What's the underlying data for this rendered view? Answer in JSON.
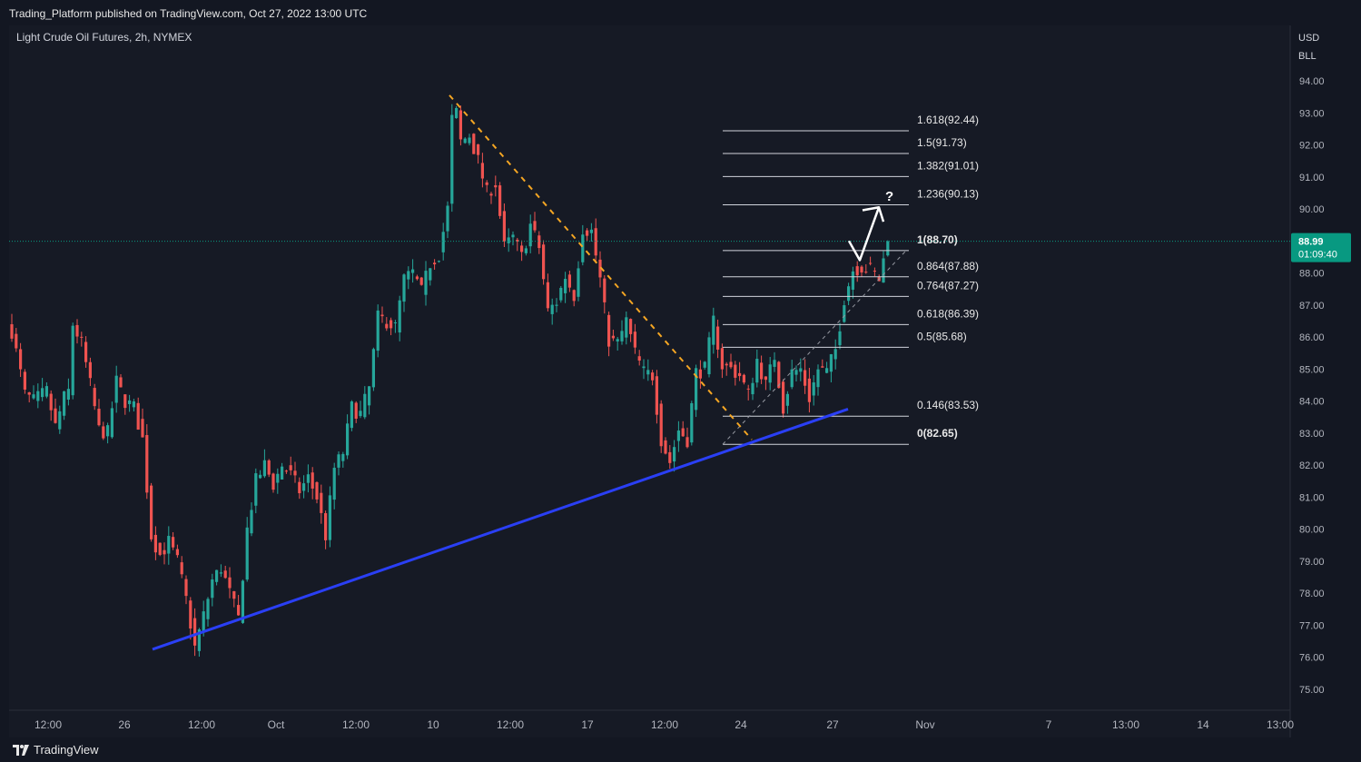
{
  "header": {
    "publisher": "Trading_Platform published on TradingView.com, Oct 27, 2022 13:00 UTC"
  },
  "footer": {
    "brand": "TradingView",
    "logo_icon": "tradingview-logo-icon"
  },
  "chart_data": {
    "type": "candlestick",
    "title": "Light Crude Oil Futures, 2h, NYMEX",
    "currency": "USD",
    "unit": "BLL",
    "ylim": [
      74.5,
      94.5
    ],
    "y_ticks": [
      "94.00",
      "93.00",
      "92.00",
      "91.00",
      "90.00",
      "89.00",
      "88.00",
      "87.00",
      "86.00",
      "85.00",
      "84.00",
      "83.00",
      "82.00",
      "81.00",
      "80.00",
      "79.00",
      "78.00",
      "77.00",
      "76.00",
      "75.00"
    ],
    "x_ticks": [
      "12:00",
      "26",
      "12:00",
      "Oct",
      "12:00",
      "10",
      "12:00",
      "17",
      "12:00",
      "24",
      "27",
      "Nov",
      "7",
      "13:00",
      "14",
      "13:00"
    ],
    "last_price": {
      "value": "88.99",
      "countdown": "01:09:40"
    },
    "colors": {
      "up": "#26a69a",
      "down": "#ef5350",
      "trendline": "#2a3ff5",
      "fib": "#d1d4dc",
      "dashed": "#f5a623",
      "badge": "#089981"
    },
    "price_path": [
      [
        0,
        86.2
      ],
      [
        3,
        84.2
      ],
      [
        5,
        84.0
      ],
      [
        8,
        84.3
      ],
      [
        10,
        83.2
      ],
      [
        12,
        84.1
      ],
      [
        13,
        84.3
      ],
      [
        14,
        86.4
      ],
      [
        16,
        85.8
      ],
      [
        18,
        84.5
      ],
      [
        20,
        83.1
      ],
      [
        22,
        83.0
      ],
      [
        24,
        84.6
      ],
      [
        26,
        84.0
      ],
      [
        28,
        83.8
      ],
      [
        30,
        82.8
      ],
      [
        32,
        79.8
      ],
      [
        34,
        79.2
      ],
      [
        36,
        79.6
      ],
      [
        38,
        79.0
      ],
      [
        40,
        77.8
      ],
      [
        42,
        76.3
      ],
      [
        44,
        77.3
      ],
      [
        46,
        78.4
      ],
      [
        48,
        78.8
      ],
      [
        50,
        78.0
      ],
      [
        52,
        77.2
      ],
      [
        54,
        80.0
      ],
      [
        56,
        81.5
      ],
      [
        58,
        82.0
      ],
      [
        60,
        81.4
      ],
      [
        62,
        82.0
      ],
      [
        64,
        81.7
      ],
      [
        66,
        81.2
      ],
      [
        68,
        81.6
      ],
      [
        70,
        81.0
      ],
      [
        72,
        79.8
      ],
      [
        74,
        81.9
      ],
      [
        76,
        82.4
      ],
      [
        78,
        83.8
      ],
      [
        80,
        83.6
      ],
      [
        82,
        84.4
      ],
      [
        84,
        86.6
      ],
      [
        86,
        86.5
      ],
      [
        88,
        86.3
      ],
      [
        90,
        87.8
      ],
      [
        92,
        88.0
      ],
      [
        94,
        87.4
      ],
      [
        96,
        88.3
      ],
      [
        98,
        88.6
      ],
      [
        100,
        90.0
      ],
      [
        101,
        92.8
      ],
      [
        102,
        93.0
      ],
      [
        103,
        92.1
      ],
      [
        105,
        92.3
      ],
      [
        107,
        91.5
      ],
      [
        109,
        90.5
      ],
      [
        111,
        90.8
      ],
      [
        113,
        88.8
      ],
      [
        115,
        89.1
      ],
      [
        117,
        88.5
      ],
      [
        119,
        89.5
      ],
      [
        121,
        88.8
      ],
      [
        123,
        86.8
      ],
      [
        125,
        87.1
      ],
      [
        127,
        87.9
      ],
      [
        129,
        87.3
      ],
      [
        131,
        89.4
      ],
      [
        133,
        89.3
      ],
      [
        135,
        87.8
      ],
      [
        137,
        85.9
      ],
      [
        139,
        85.8
      ],
      [
        141,
        86.5
      ],
      [
        143,
        85.5
      ],
      [
        145,
        84.9
      ],
      [
        147,
        84.8
      ],
      [
        149,
        82.8
      ],
      [
        151,
        82.1
      ],
      [
        153,
        83.1
      ],
      [
        155,
        82.8
      ],
      [
        157,
        84.9
      ],
      [
        159,
        85.0
      ],
      [
        161,
        86.5
      ],
      [
        163,
        85.1
      ],
      [
        165,
        85.0
      ],
      [
        167,
        84.8
      ],
      [
        169,
        84.2
      ],
      [
        171,
        85.3
      ],
      [
        173,
        84.5
      ],
      [
        175,
        85.4
      ],
      [
        177,
        83.8
      ],
      [
        179,
        84.9
      ],
      [
        181,
        85.0
      ],
      [
        183,
        84.1
      ],
      [
        185,
        85.0
      ],
      [
        187,
        84.9
      ],
      [
        189,
        85.6
      ],
      [
        191,
        87.2
      ],
      [
        193,
        88.1
      ],
      [
        195,
        88.2
      ],
      [
        197,
        88.1
      ],
      [
        199,
        87.8
      ],
      [
        201,
        88.99
      ]
    ],
    "descending_line": {
      "from": {
        "bar": 103,
        "price": 93.55
      },
      "to": {
        "bar": 176,
        "price": 82.65
      }
    },
    "ascending_trendline": {
      "from": {
        "bar": 42,
        "price": 76.25
      },
      "to": {
        "bar": 201,
        "price": 83.75
      }
    },
    "diagonal_dotted": {
      "from": {
        "bar": 176,
        "price": 82.65
      },
      "to": {
        "bar": 216,
        "price": 88.7
      }
    },
    "projection_arrow": {
      "points": [
        {
          "bar": 201,
          "price": 88.99
        },
        {
          "bar": 204,
          "price": 88.75
        },
        {
          "bar": 209,
          "price": 90.1
        },
        {
          "bar": 212,
          "price": 89.75
        }
      ],
      "label": "?"
    },
    "fib_levels": [
      {
        "ratio": "1.618",
        "label": "1.618(92.44)",
        "price": 92.44,
        "bold": false
      },
      {
        "ratio": "1.5",
        "label": "1.5(91.73)",
        "price": 91.73,
        "bold": false
      },
      {
        "ratio": "1.382",
        "label": "1.382(91.01)",
        "price": 91.01,
        "bold": false
      },
      {
        "ratio": "1.236",
        "label": "1.236(90.13)",
        "price": 90.13,
        "bold": false
      },
      {
        "ratio": "1",
        "label": "1(88.70)",
        "price": 88.7,
        "bold": true
      },
      {
        "ratio": "0.864",
        "label": "0.864(87.88)",
        "price": 87.88,
        "bold": false
      },
      {
        "ratio": "0.764",
        "label": "0.764(87.27)",
        "price": 87.27,
        "bold": false
      },
      {
        "ratio": "0.618",
        "label": "0.618(86.39)",
        "price": 86.39,
        "bold": false
      },
      {
        "ratio": "0.5",
        "label": "0.5(85.68)",
        "price": 85.68,
        "bold": false
      },
      {
        "ratio": "0.146",
        "label": "0.146(83.53)",
        "price": 83.53,
        "bold": false
      },
      {
        "ratio": "0",
        "label": "0(82.65)",
        "price": 82.65,
        "bold": true
      }
    ],
    "fib_range": {
      "from_bar": 176,
      "to_bar": 216
    },
    "total_bars": 295,
    "grid": false,
    "legend": "none"
  }
}
